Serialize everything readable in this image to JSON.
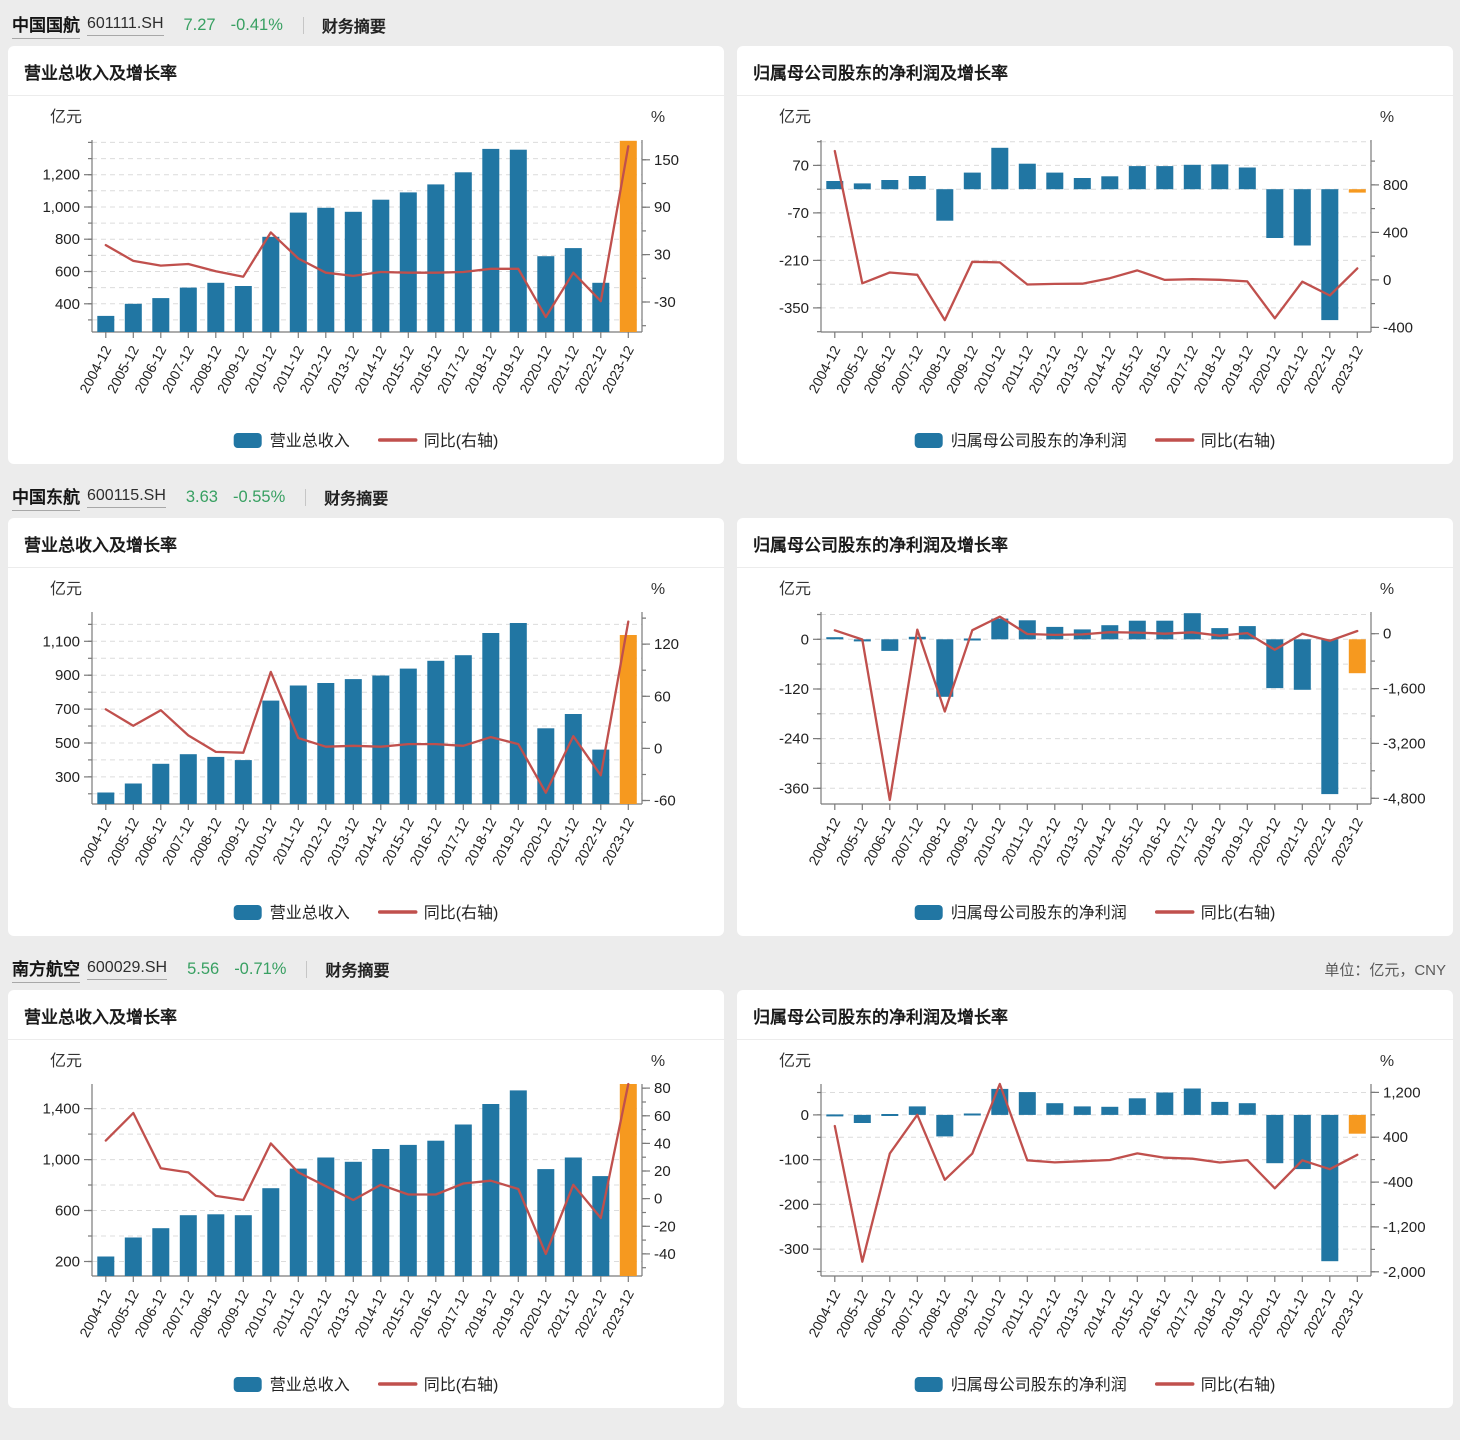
{
  "palette": {
    "bar_blue": "#2176a3",
    "bar_highlight_orange": "#f6991f",
    "yoy_line_red": "#c0504d",
    "green_quote": "#38a062",
    "page_bg": "#ececec",
    "card_bg": "#ffffff"
  },
  "sections": [
    {
      "name": "中国国航",
      "code": "601111.SH",
      "price": "7.27",
      "change": "-0.41%",
      "summary_link": "财务摘要"
    },
    {
      "name": "中国东航",
      "code": "600115.SH",
      "price": "3.63",
      "change": "-0.55%",
      "summary_link": "财务摘要"
    },
    {
      "name": "南方航空",
      "code": "600029.SH",
      "price": "5.56",
      "change": "-0.71%",
      "summary_link": "财务摘要",
      "unit_note": "单位：亿元，CNY"
    }
  ],
  "chart_data": {
    "type": "bar+line",
    "categories": [
      "2004-12",
      "2005-12",
      "2006-12",
      "2007-12",
      "2008-12",
      "2009-12",
      "2010-12",
      "2011-12",
      "2012-12",
      "2013-12",
      "2014-12",
      "2015-12",
      "2016-12",
      "2017-12",
      "2018-12",
      "2019-12",
      "2020-12",
      "2021-12",
      "2022-12",
      "2023-12"
    ],
    "charts": [
      {
        "company": "中国国航",
        "title": "营业总收入及增长率",
        "bar_label": "营业总收入",
        "line_label": "同比(右轴)",
        "left_axis": {
          "unit": "亿元",
          "min": 225,
          "max": 1415,
          "ticks": [
            400,
            600,
            800,
            1000,
            1200
          ],
          "minor_step": 100
        },
        "right_axis": {
          "unit": "%",
          "min": -68,
          "max": 175,
          "ticks": [
            -30,
            30,
            90,
            150
          ],
          "minor_step": 30
        },
        "bars": [
          325,
          400,
          435,
          500,
          530,
          510,
          815,
          965,
          995,
          970,
          1045,
          1090,
          1140,
          1215,
          1360,
          1355,
          695,
          745,
          530,
          1410
        ],
        "line": [
          42,
          22,
          16,
          18,
          9,
          2,
          58,
          25,
          7,
          3,
          8,
          7,
          7,
          8,
          12,
          12,
          -49,
          7,
          -29,
          167
        ]
      },
      {
        "company": "中国国航",
        "title": "归属母公司股东的净利润及增长率",
        "bar_label": "归属母公司股东的净利润",
        "line_label": "同比(右轴)",
        "left_axis": {
          "unit": "亿元",
          "min": -421,
          "max": 145,
          "ticks": [
            70,
            -70,
            -210,
            -350
          ],
          "minor_step": 70
        },
        "right_axis": {
          "unit": "%",
          "min": -439,
          "max": 1178,
          "ticks": [
            800,
            400,
            0,
            -400
          ],
          "minor_step": 200
        },
        "bars": [
          24,
          17,
          27,
          39,
          -93,
          49,
          122,
          75,
          49,
          33,
          38,
          68,
          68,
          72,
          73,
          64,
          -144,
          -166,
          -386,
          -10
        ],
        "line": [
          1085,
          -29,
          62,
          43,
          -339,
          152,
          147,
          -39,
          -34,
          -32,
          14,
          80,
          0,
          6,
          1,
          -13,
          -324,
          -15,
          -132,
          97
        ]
      },
      {
        "company": "中国东航",
        "title": "营业总收入及增长率",
        "bar_label": "营业总收入",
        "line_label": "同比(右轴)",
        "left_axis": {
          "unit": "亿元",
          "min": 140,
          "max": 1273,
          "ticks": [
            300,
            500,
            700,
            900,
            1100
          ],
          "minor_step": 100
        },
        "right_axis": {
          "unit": "%",
          "min": -64,
          "max": 157,
          "ticks": [
            -60,
            0,
            60,
            120
          ],
          "minor_step": 30
        },
        "bars": [
          208,
          261,
          377,
          434,
          418,
          399,
          750,
          839,
          854,
          877,
          898,
          939,
          985,
          1018,
          1149,
          1208,
          587,
          671,
          461,
          1137
        ],
        "line": [
          45,
          26,
          44,
          15,
          -4,
          -5,
          88,
          12,
          2,
          3,
          2,
          5,
          5,
          3,
          13,
          5,
          -51,
          14,
          -31,
          146
        ]
      },
      {
        "company": "中国东航",
        "title": "归属母公司股东的净利润及增长率",
        "bar_label": "归属母公司股东的净利润",
        "line_label": "同比(右轴)",
        "left_axis": {
          "unit": "亿元",
          "min": -398,
          "max": 66,
          "ticks": [
            0,
            -120,
            -240,
            -360
          ],
          "minor_step": 60
        },
        "right_axis": {
          "unit": "%",
          "min": -4967,
          "max": 633,
          "ticks": [
            0,
            -1600,
            -3200,
            -4800
          ],
          "minor_step": 800
        },
        "bars": [
          5,
          -5,
          -28,
          6,
          -139,
          2,
          50,
          46,
          30,
          24,
          34,
          45,
          45,
          63,
          27,
          32,
          -118,
          -122,
          -374,
          -82
        ],
        "line": [
          100,
          -170,
          -4850,
          121,
          -2270,
          101,
          500,
          -8,
          -36,
          -20,
          44,
          32,
          0,
          41,
          -57,
          18,
          -470,
          -3,
          -206,
          78
        ]
      },
      {
        "company": "南方航空",
        "title": "营业总收入及增长率",
        "bar_label": "营业总收入",
        "line_label": "同比(右轴)",
        "left_axis": {
          "unit": "亿元",
          "min": 86,
          "max": 1593,
          "ticks": [
            200,
            600,
            1000,
            1400
          ],
          "minor_step": 200
        },
        "right_axis": {
          "unit": "%",
          "min": -56,
          "max": 83,
          "ticks": [
            -40,
            -20,
            0,
            20,
            40,
            60,
            80
          ],
          "minor_step": 10
        },
        "bars": [
          239,
          388,
          461,
          563,
          570,
          563,
          775,
          929,
          1016,
          982,
          1083,
          1115,
          1148,
          1275,
          1436,
          1543,
          925,
          1016,
          870,
          1599
        ],
        "line": [
          42,
          62,
          22,
          19,
          2,
          -1,
          40,
          19,
          9,
          -1,
          10,
          3,
          3,
          11,
          13,
          7,
          -40,
          10,
          -14,
          84
        ]
      },
      {
        "company": "南方航空",
        "title": "归属母公司股东的净利润及增长率",
        "bar_label": "归属母公司股东的净利润",
        "line_label": "同比(右轴)",
        "left_axis": {
          "unit": "亿元",
          "min": -360,
          "max": 69,
          "ticks": [
            0,
            -100,
            -200,
            -300
          ],
          "minor_step": 50
        },
        "right_axis": {
          "unit": "%",
          "min": -2075,
          "max": 1349,
          "ticks": [
            1200,
            400,
            -400,
            -1200,
            -2000
          ],
          "minor_step": 400
        },
        "bars": [
          1,
          -18,
          2,
          19,
          -48,
          3,
          58,
          51,
          26,
          19,
          18,
          37,
          50,
          59,
          29,
          26,
          -108,
          -121,
          -327,
          -42
        ],
        "line": [
          600,
          -1820,
          110,
          800,
          -360,
          107,
          1658,
          -12,
          -49,
          -28,
          -6,
          111,
          35,
          17,
          -51,
          -9,
          -511,
          -12,
          -170,
          87
        ]
      }
    ]
  }
}
